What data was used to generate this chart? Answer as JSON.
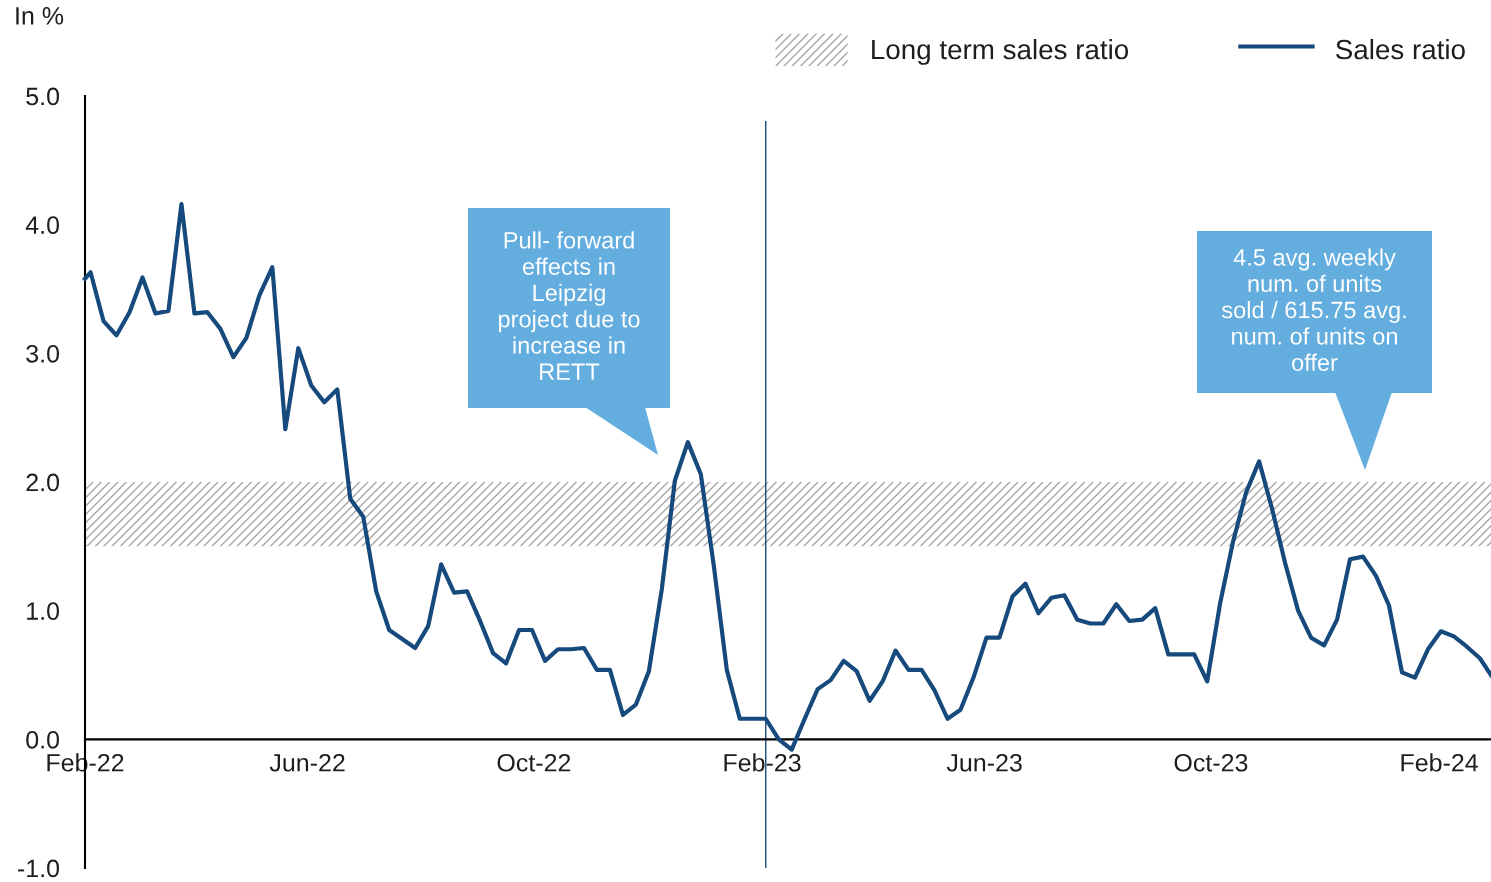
{
  "chart_data": {
    "type": "line",
    "ylabel": "In %",
    "x": [
      "2022-02-01",
      "2022-02-04",
      "2022-02-11",
      "2022-02-18",
      "2022-02-25",
      "2022-03-04",
      "2022-03-11",
      "2022-03-18",
      "2022-03-25",
      "2022-04-01",
      "2022-04-08",
      "2022-04-15",
      "2022-04-22",
      "2022-04-29",
      "2022-05-06",
      "2022-05-13",
      "2022-05-20",
      "2022-05-27",
      "2022-06-03",
      "2022-06-10",
      "2022-06-17",
      "2022-06-24",
      "2022-07-01",
      "2022-07-08",
      "2022-07-15",
      "2022-07-22",
      "2022-07-29",
      "2022-08-05",
      "2022-08-12",
      "2022-08-19",
      "2022-08-26",
      "2022-09-02",
      "2022-09-09",
      "2022-09-16",
      "2022-09-23",
      "2022-09-30",
      "2022-10-07",
      "2022-10-14",
      "2022-10-21",
      "2022-10-28",
      "2022-11-04",
      "2022-11-11",
      "2022-11-18",
      "2022-11-25",
      "2022-12-02",
      "2022-12-09",
      "2022-12-16",
      "2022-12-23",
      "2022-12-30",
      "2023-01-06",
      "2023-01-13",
      "2023-01-20",
      "2023-01-27",
      "2023-02-03",
      "2023-02-10",
      "2023-02-17",
      "2023-02-24",
      "2023-03-03",
      "2023-03-10",
      "2023-03-17",
      "2023-03-24",
      "2023-03-31",
      "2023-04-07",
      "2023-04-14",
      "2023-04-21",
      "2023-04-28",
      "2023-05-05",
      "2023-05-12",
      "2023-05-19",
      "2023-05-26",
      "2023-06-02",
      "2023-06-09",
      "2023-06-16",
      "2023-06-23",
      "2023-06-30",
      "2023-07-07",
      "2023-07-14",
      "2023-07-21",
      "2023-07-28",
      "2023-08-04",
      "2023-08-11",
      "2023-08-18",
      "2023-08-25",
      "2023-09-01",
      "2023-09-08",
      "2023-09-15",
      "2023-09-22",
      "2023-09-29",
      "2023-10-06",
      "2023-10-13",
      "2023-10-20",
      "2023-10-27",
      "2023-11-03",
      "2023-11-10",
      "2023-11-17",
      "2023-11-24",
      "2023-12-01",
      "2023-12-08",
      "2023-12-15",
      "2023-12-22",
      "2023-12-29",
      "2024-01-05",
      "2024-01-12",
      "2024-01-19",
      "2024-01-26",
      "2024-02-02",
      "2024-02-09",
      "2024-02-16",
      "2024-02-23",
      "2024-02-29"
    ],
    "series": [
      {
        "name": "Sales ratio",
        "color": "#174a7c",
        "values": [
          3.58,
          3.63,
          3.25,
          3.14,
          3.32,
          3.59,
          3.31,
          3.33,
          4.16,
          3.31,
          3.32,
          3.19,
          2.97,
          3.12,
          3.45,
          3.67,
          2.41,
          3.04,
          2.75,
          2.62,
          2.72,
          1.87,
          1.73,
          1.15,
          0.85,
          0.78,
          0.71,
          0.88,
          1.36,
          1.14,
          1.15,
          0.92,
          0.67,
          0.59,
          0.85,
          0.85,
          0.61,
          0.7,
          0.7,
          0.71,
          0.54,
          0.54,
          0.19,
          0.27,
          0.53,
          1.17,
          2.01,
          2.31,
          2.06,
          1.35,
          0.54,
          0.16,
          0.16,
          0.16,
          0.0,
          -0.08,
          0.16,
          0.39,
          0.46,
          0.61,
          0.53,
          0.3,
          0.45,
          0.69,
          0.54,
          0.54,
          0.38,
          0.16,
          0.23,
          0.48,
          0.79,
          0.79,
          1.11,
          1.21,
          0.98,
          1.1,
          1.12,
          0.93,
          0.9,
          0.9,
          1.05,
          0.92,
          0.93,
          1.02,
          0.66,
          0.66,
          0.66,
          0.45,
          1.06,
          1.54,
          1.92,
          2.16,
          1.79,
          1.37,
          1.0,
          0.79,
          0.73,
          0.93,
          1.4,
          1.42,
          1.27,
          1.04,
          0.52,
          0.48,
          0.7,
          0.84,
          0.8,
          0.72,
          0.63,
          0.5
        ]
      }
    ],
    "xlim": [
      "2022-02-01",
      "2024-02-29"
    ],
    "xticks": [
      {
        "value": "2022-02-01",
        "label": "Feb-22"
      },
      {
        "value": "2022-06-01",
        "label": "Jun-22"
      },
      {
        "value": "2022-10-01",
        "label": "Oct-22"
      },
      {
        "value": "2023-02-01",
        "label": "Feb-23"
      },
      {
        "value": "2023-06-01",
        "label": "Jun-23"
      },
      {
        "value": "2023-10-01",
        "label": "Oct-23"
      },
      {
        "value": "2024-02-01",
        "label": "Feb-24"
      }
    ],
    "ylim": [
      -1,
      5
    ],
    "yticks": [
      {
        "value": -1,
        "label": "-1.0"
      },
      {
        "value": 0,
        "label": "0.0"
      },
      {
        "value": 1,
        "label": "1.0"
      },
      {
        "value": 2,
        "label": "2.0"
      },
      {
        "value": 3,
        "label": "3.0"
      },
      {
        "value": 4,
        "label": "4.0"
      },
      {
        "value": 5,
        "label": "5.0"
      }
    ],
    "bands": [
      {
        "axis": "y",
        "from": 1.5,
        "to": 2.0,
        "label": "Long term sales ratio",
        "color": "#a6a6a6"
      }
    ],
    "ref_lines": [
      {
        "axis": "x",
        "value": "2023-02-03",
        "color": "#174a7c",
        "line_style": "solid"
      }
    ],
    "annotations": [
      "Pull- forward\neffects in\nLeipzig\nproject due to\nincrease in\nRETT",
      "4.5 avg. weekly\nnum. of units\nsold / 615.75 avg.\nnum. of units on\noffer"
    ],
    "legend": "top right",
    "grid": false,
    "marker": "none",
    "line_style": "solid"
  }
}
